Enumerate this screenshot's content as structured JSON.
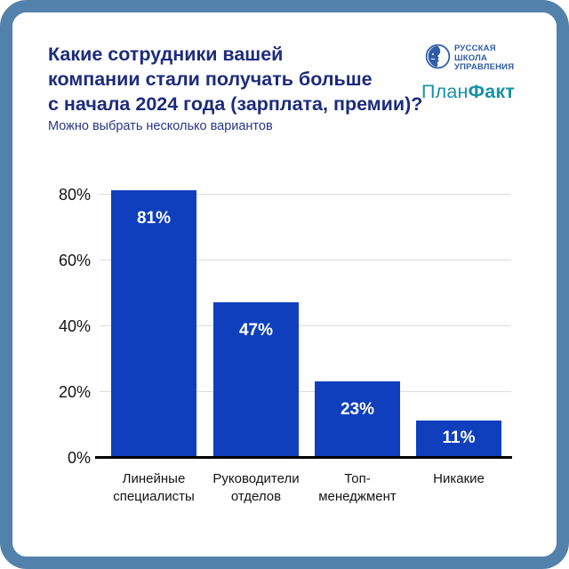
{
  "frame": {
    "border_color": "#5282AB",
    "background": "#FFFFFF"
  },
  "header": {
    "title_line1": "Какие сотрудники вашей",
    "title_line2": "компании стали получать больше",
    "title_line3": "с начала 2024 года (зарплата, премии)?",
    "subtitle": "Можно выбрать несколько вариантов",
    "title_color": "#1D2B7C"
  },
  "logos": {
    "rsu": {
      "icon": "face-profile-circle-icon",
      "line1": "РУССКАЯ",
      "line2": "ШКОЛА",
      "line3": "УПРАВЛЕНИЯ",
      "color": "#2E5CA9"
    },
    "planfact": {
      "part_regular": "План",
      "part_bold": "Факт",
      "color": "#1792A6"
    }
  },
  "chart_data": {
    "type": "bar",
    "title": "Какие сотрудники вашей компании стали получать больше с начала 2024 года (зарплата, премии)?",
    "subtitle": "Можно выбрать несколько вариантов",
    "categories": [
      "Линейные специалисты",
      "Руководители отделов",
      "Топ-менеджмент",
      "Никакие"
    ],
    "category_lines": [
      [
        "Линейные",
        "специалисты"
      ],
      [
        "Руководители",
        "отделов"
      ],
      [
        "Топ-",
        "менеджмент"
      ],
      [
        "Никакие"
      ]
    ],
    "values": [
      81,
      47,
      23,
      11
    ],
    "value_labels": [
      "81%",
      "47%",
      "23%",
      "11%"
    ],
    "y_ticks": [
      {
        "label": "80%",
        "value": 80
      },
      {
        "label": "60%",
        "value": 60
      },
      {
        "label": "40%",
        "value": 40
      },
      {
        "label": "20%",
        "value": 20
      },
      {
        "label": "0%",
        "value": 0
      }
    ],
    "ylim": [
      0,
      83
    ],
    "xlabel": "",
    "ylabel": "",
    "grid": true,
    "legend": "none",
    "bar_color": "#0F3FBD"
  }
}
